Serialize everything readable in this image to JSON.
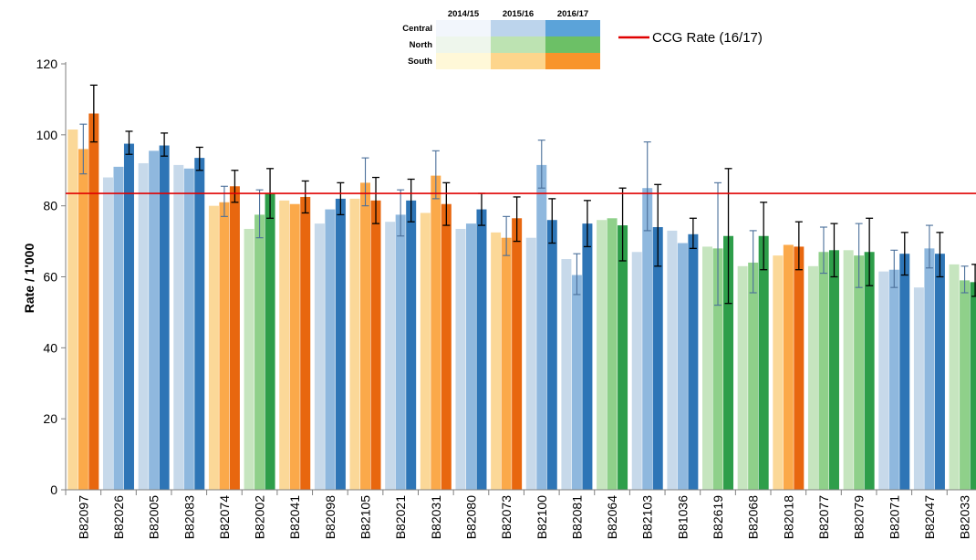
{
  "chart_data": {
    "type": "bar",
    "title": "",
    "ylabel": "Rate / 1'000",
    "xlabel": "",
    "ylim": [
      0,
      120
    ],
    "yticks": [
      0,
      20,
      40,
      60,
      80,
      100,
      120
    ],
    "grid": false,
    "reference_line": {
      "label": "CCG Rate (16/17)",
      "value": 83.5,
      "color": "#e00000"
    },
    "years": [
      "2014/15",
      "2015/16",
      "2016/17"
    ],
    "regions": [
      "Central",
      "North",
      "South"
    ],
    "colors": {
      "Central": [
        "#c7d9ea",
        "#8fb8de",
        "#2e75b6"
      ],
      "North": [
        "#c6e5bf",
        "#8fd08a",
        "#2e9e4a"
      ],
      "South": [
        "#fbd898",
        "#fba94a",
        "#e8670f"
      ]
    },
    "legend_colors": {
      "Central": [
        "#f2f6fc",
        "#bcd4ec",
        "#5ba3d9"
      ],
      "North": [
        "#eef6ec",
        "#bde3b2",
        "#6cc066"
      ],
      "South": [
        "#fff8d8",
        "#fdd58c",
        "#f8942a"
      ]
    },
    "categories": [
      "B82097",
      "B82026",
      "B82005",
      "B82083",
      "B82074",
      "B82002",
      "B82041",
      "B82098",
      "B82105",
      "B82021",
      "B82031",
      "B82080",
      "B82073",
      "B82100",
      "B82081",
      "B82064",
      "B82103",
      "B81036",
      "B82619",
      "B82068",
      "B82018",
      "B82077",
      "B82079",
      "B82071",
      "B82047",
      "B82033"
    ],
    "practice_region": [
      "South",
      "Central",
      "Central",
      "Central",
      "South",
      "North",
      "South",
      "Central",
      "South",
      "Central",
      "South",
      "Central",
      "South",
      "Central",
      "Central",
      "North",
      "Central",
      "Central",
      "North",
      "North",
      "South",
      "North",
      "North",
      "Central",
      "Central",
      "North"
    ],
    "series": [
      {
        "name": "2014/15",
        "values": [
          101.5,
          88,
          92,
          91.5,
          80,
          73.5,
          81.5,
          75,
          82,
          75.5,
          78,
          73.5,
          72.5,
          71,
          65,
          76,
          67,
          73,
          68.5,
          63,
          66,
          63,
          67.5,
          61.5,
          57,
          63.5
        ]
      },
      {
        "name": "2015/16",
        "values": [
          96,
          91,
          95.5,
          90.5,
          81,
          77.5,
          80.5,
          79,
          86.5,
          77.5,
          88.5,
          75,
          71,
          91.5,
          60.5,
          76.5,
          85,
          69.5,
          68,
          64,
          69,
          67,
          66,
          62,
          68,
          59
        ]
      },
      {
        "name": "2016/17",
        "values": [
          106,
          97.5,
          97,
          93.5,
          85.5,
          83.5,
          82.5,
          82,
          81.5,
          81.5,
          80.5,
          79,
          76.5,
          76,
          75,
          74.5,
          74,
          72,
          71.5,
          71.5,
          68.5,
          67.5,
          67,
          66.5,
          66.5,
          58.5
        ]
      }
    ],
    "error_bars": {
      "2015/16": [
        [
          89,
          103
        ],
        null,
        null,
        null,
        [
          77,
          85.5
        ],
        [
          71,
          84.5
        ],
        null,
        null,
        [
          80,
          93.5
        ],
        [
          71.5,
          84.5
        ],
        [
          82,
          95.5
        ],
        null,
        [
          66,
          77
        ],
        [
          85,
          98.5
        ],
        [
          55,
          66.5
        ],
        null,
        [
          73,
          98
        ],
        null,
        [
          52,
          86.5
        ],
        [
          55.5,
          73
        ],
        null,
        [
          61,
          74
        ],
        [
          57,
          75
        ],
        [
          57,
          67.5
        ],
        [
          62.5,
          74.5
        ],
        [
          55.5,
          63
        ]
      ],
      "2016/17": [
        [
          98,
          114
        ],
        [
          94.5,
          101
        ],
        [
          94,
          100.5
        ],
        [
          90,
          96.5
        ],
        [
          81,
          90
        ],
        [
          76.5,
          90.5
        ],
        [
          78,
          87
        ],
        [
          77.5,
          86.5
        ],
        [
          75,
          88
        ],
        [
          75.5,
          87.5
        ],
        [
          74.5,
          86.5
        ],
        [
          74.5,
          83.5
        ],
        [
          70,
          82.5
        ],
        [
          69.5,
          82
        ],
        [
          68.5,
          81.5
        ],
        [
          64.5,
          85
        ],
        [
          63,
          86
        ],
        [
          68,
          76.5
        ],
        [
          52.5,
          90.5
        ],
        [
          62,
          81
        ],
        [
          62,
          75.5
        ],
        [
          60,
          75
        ],
        [
          57.5,
          76.5
        ],
        [
          60.5,
          72.5
        ],
        [
          60,
          72.5
        ],
        [
          54.5,
          63.5
        ]
      ]
    }
  }
}
